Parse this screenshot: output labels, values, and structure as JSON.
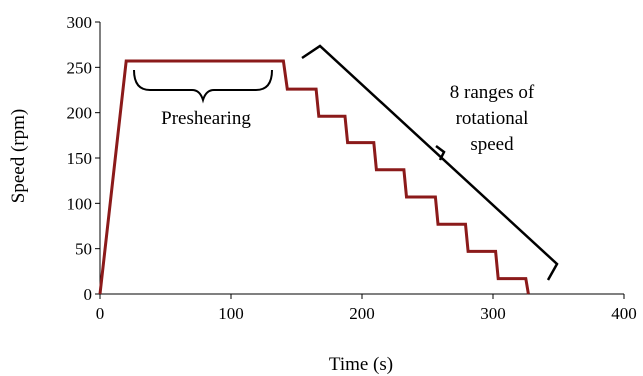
{
  "chart_data": {
    "type": "line",
    "title": "",
    "xlabel": "Time (s)",
    "ylabel": "Speed (rpm)",
    "xlim": [
      0,
      400
    ],
    "ylim": [
      0,
      300
    ],
    "x_ticks": [
      "0",
      "100",
      "200",
      "300",
      "400"
    ],
    "y_ticks": [
      "0",
      "50",
      "100",
      "150",
      "200",
      "250",
      "300"
    ],
    "grid": false,
    "legend": false,
    "series": [
      {
        "color": "#8B1A1A",
        "points": [
          [
            0,
            0
          ],
          [
            20,
            257
          ],
          [
            140,
            257
          ],
          [
            143,
            226
          ],
          [
            165,
            226
          ],
          [
            167,
            196
          ],
          [
            187,
            196
          ],
          [
            189,
            167
          ],
          [
            209,
            167
          ],
          [
            211,
            137
          ],
          [
            232,
            137
          ],
          [
            234,
            107
          ],
          [
            256,
            107
          ],
          [
            258,
            77
          ],
          [
            279,
            77
          ],
          [
            281,
            47
          ],
          [
            302,
            47
          ],
          [
            304,
            17
          ],
          [
            325,
            17
          ],
          [
            327,
            0
          ]
        ]
      }
    ],
    "annotations": [
      {
        "id": "preshearing",
        "text": "Preshearing"
      },
      {
        "id": "ranges",
        "lines": [
          "8 ranges of",
          "rotational",
          "speed"
        ]
      }
    ]
  }
}
